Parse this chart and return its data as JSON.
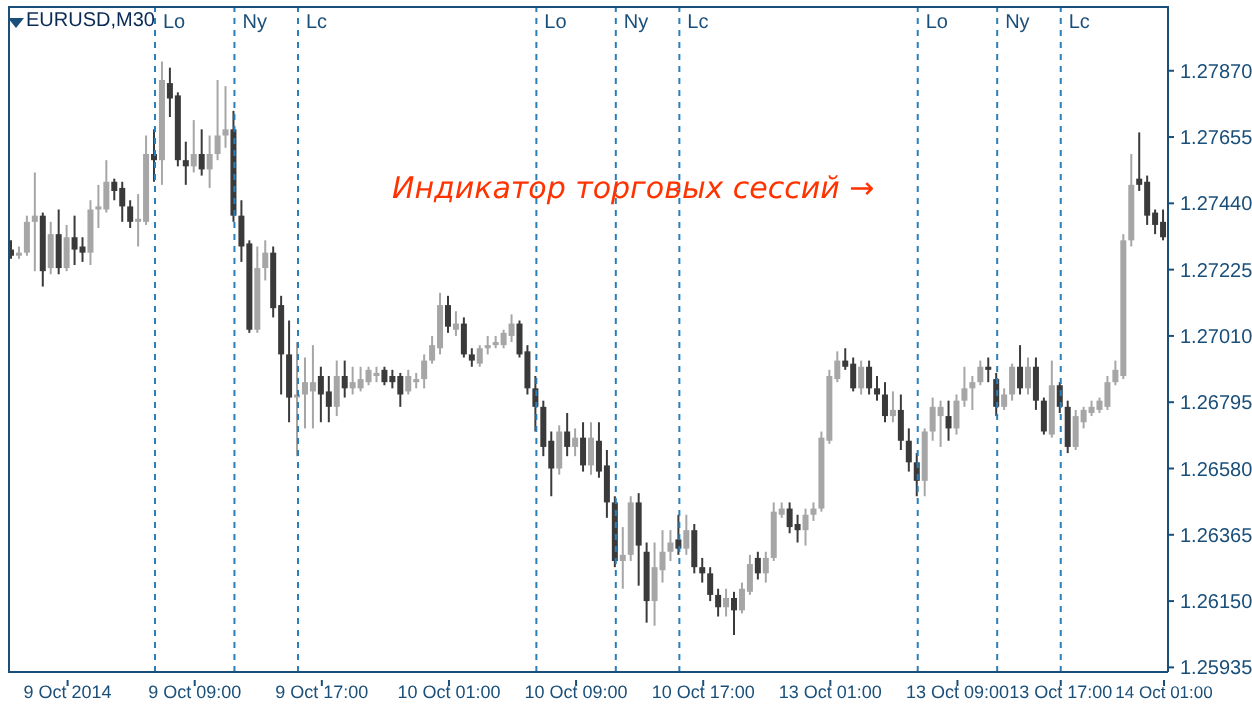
{
  "chart_data": {
    "type": "candlestick",
    "title": "EURUSD,M30",
    "annotations": [
      "Индикатор торговых сессий →",
      "Lo",
      "Ny",
      "Lc",
      "Lo",
      "Ny",
      "Lc",
      "Lo",
      "Ny",
      "Lc"
    ],
    "categories": [
      null,
      null,
      null,
      null,
      null,
      null,
      null,
      "9 Oct 2014",
      null,
      null,
      null,
      null,
      null,
      null,
      null,
      null,
      null,
      null,
      null,
      null,
      null,
      null,
      null,
      "9 Oct 09:00",
      null,
      null,
      null,
      null,
      null,
      null,
      null,
      null,
      null,
      null,
      null,
      null,
      null,
      null,
      null,
      "9 Oct 17:00",
      null,
      null,
      null,
      null,
      null,
      null,
      null,
      null,
      null,
      null,
      null,
      null,
      null,
      null,
      null,
      "10 Oct 01:00",
      null,
      null,
      null,
      null,
      null,
      null,
      null,
      null,
      null,
      null,
      null,
      null,
      null,
      null,
      null,
      "10 Oct 09:00",
      null,
      null,
      null,
      null,
      null,
      null,
      null,
      null,
      null,
      null,
      null,
      null,
      null,
      null,
      null,
      "10 Oct 17:00",
      null,
      null,
      null,
      null,
      null,
      null,
      null,
      null,
      null,
      null,
      null,
      null,
      null,
      null,
      null,
      "13 Oct 01:00",
      null,
      null,
      null,
      null,
      null,
      null,
      null,
      null,
      null,
      null,
      null,
      null,
      null,
      null,
      null,
      "13 Oct 09:00",
      null,
      null,
      null,
      null,
      null,
      null,
      null,
      null,
      null,
      null,
      null,
      null,
      "13 Oct 17:00",
      null,
      null,
      null,
      null,
      null,
      null,
      null,
      null,
      null,
      null,
      null,
      null,
      "14 Oct 01:00"
    ],
    "ohlc": [
      [
        1.2729,
        1.2732,
        1.2726,
        1.2727
      ],
      [
        1.2727,
        1.273,
        1.2726,
        1.2728
      ],
      [
        1.2728,
        1.274,
        1.2727,
        1.2738
      ],
      [
        1.2738,
        1.2754,
        1.2722,
        1.274
      ],
      [
        1.274,
        1.2741,
        1.2717,
        1.2722
      ],
      [
        1.2723,
        1.2738,
        1.2721,
        1.2734
      ],
      [
        1.2734,
        1.2742,
        1.2721,
        1.2723
      ],
      [
        1.2723,
        1.2737,
        1.2722,
        1.2733
      ],
      [
        1.2733,
        1.274,
        1.2724,
        1.2729
      ],
      [
        1.273,
        1.2733,
        1.2725,
        1.2728
      ],
      [
        1.2728,
        1.2745,
        1.2724,
        1.2742
      ],
      [
        1.2742,
        1.275,
        1.2736,
        1.2743
      ],
      [
        1.2742,
        1.2758,
        1.2741,
        1.2751
      ],
      [
        1.2751,
        1.2752,
        1.2745,
        1.2748
      ],
      [
        1.2749,
        1.2751,
        1.2738,
        1.2743
      ],
      [
        1.2743,
        1.2745,
        1.2736,
        1.2738
      ],
      [
        1.2738,
        1.2747,
        1.273,
        1.2739
      ],
      [
        1.2738,
        1.2766,
        1.2737,
        1.276
      ],
      [
        1.276,
        1.2768,
        1.2751,
        1.2758
      ],
      [
        1.2758,
        1.279,
        1.275,
        1.2784
      ],
      [
        1.2783,
        1.2788,
        1.2772,
        1.2778
      ],
      [
        1.2779,
        1.278,
        1.2756,
        1.2758
      ],
      [
        1.2758,
        1.2764,
        1.275,
        1.2756
      ],
      [
        1.2756,
        1.2771,
        1.2754,
        1.276
      ],
      [
        1.276,
        1.2768,
        1.2753,
        1.2755
      ],
      [
        1.2755,
        1.2766,
        1.2749,
        1.276
      ],
      [
        1.276,
        1.2784,
        1.2758,
        1.2766
      ],
      [
        1.2766,
        1.2782,
        1.2762,
        1.2768
      ],
      [
        1.2768,
        1.2774,
        1.2738,
        1.274
      ],
      [
        1.274,
        1.2745,
        1.2725,
        1.273
      ],
      [
        1.2731,
        1.2732,
        1.2702,
        1.2703
      ],
      [
        1.2703,
        1.273,
        1.2702,
        1.2723
      ],
      [
        1.2723,
        1.2732,
        1.2719,
        1.2728
      ],
      [
        1.2728,
        1.273,
        1.2707,
        1.271
      ],
      [
        1.2711,
        1.2714,
        1.2682,
        1.2695
      ],
      [
        1.2695,
        1.2706,
        1.2673,
        1.2681
      ],
      [
        1.2681,
        1.2699,
        1.2662,
        1.2682
      ],
      [
        1.2682,
        1.2694,
        1.2671,
        1.2686
      ],
      [
        1.2683,
        1.2698,
        1.2671,
        1.2686
      ],
      [
        1.2688,
        1.2691,
        1.2673,
        1.2682
      ],
      [
        1.2683,
        1.2688,
        1.2673,
        1.2678
      ],
      [
        1.2678,
        1.2693,
        1.2675,
        1.2688
      ],
      [
        1.2688,
        1.2693,
        1.2681,
        1.2684
      ],
      [
        1.2684,
        1.2691,
        1.2682,
        1.2686
      ],
      [
        1.2684,
        1.2691,
        1.2683,
        1.2687
      ],
      [
        1.2686,
        1.2691,
        1.2685,
        1.269
      ],
      [
        1.2688,
        1.2691,
        1.2686,
        1.2689
      ],
      [
        1.269,
        1.2691,
        1.2685,
        1.2686
      ],
      [
        1.2688,
        1.269,
        1.2684,
        1.2686
      ],
      [
        1.2688,
        1.2689,
        1.2678,
        1.2682
      ],
      [
        1.2683,
        1.269,
        1.2682,
        1.2688
      ],
      [
        1.2686,
        1.2689,
        1.2684,
        1.2687
      ],
      [
        1.2687,
        1.2695,
        1.2684,
        1.2693
      ],
      [
        1.2693,
        1.2701,
        1.2692,
        1.2698
      ],
      [
        1.2697,
        1.2715,
        1.2695,
        1.2711
      ],
      [
        1.2711,
        1.2714,
        1.2702,
        1.2704
      ],
      [
        1.2703,
        1.2709,
        1.2701,
        1.2705
      ],
      [
        1.2705,
        1.2707,
        1.2694,
        1.2695
      ],
      [
        1.2695,
        1.2697,
        1.2691,
        1.2693
      ],
      [
        1.2692,
        1.2698,
        1.2691,
        1.2697
      ],
      [
        1.2697,
        1.2701,
        1.2695,
        1.2698
      ],
      [
        1.2698,
        1.2701,
        1.2697,
        1.2699
      ],
      [
        1.2698,
        1.2703,
        1.2697,
        1.2702
      ],
      [
        1.2701,
        1.2708,
        1.2699,
        1.2705
      ],
      [
        1.2705,
        1.2706,
        1.2694,
        1.2695
      ],
      [
        1.2696,
        1.2698,
        1.2682,
        1.2684
      ],
      [
        1.2684,
        1.2688,
        1.267,
        1.2678
      ],
      [
        1.2678,
        1.268,
        1.2662,
        1.2665
      ],
      [
        1.2667,
        1.267,
        1.2649,
        1.2658
      ],
      [
        1.2658,
        1.2672,
        1.2656,
        1.267
      ],
      [
        1.267,
        1.2676,
        1.2662,
        1.2665
      ],
      [
        1.2665,
        1.2671,
        1.2662,
        1.2668
      ],
      [
        1.2668,
        1.2673,
        1.2657,
        1.2659
      ],
      [
        1.2659,
        1.2673,
        1.2656,
        1.2668
      ],
      [
        1.2667,
        1.2673,
        1.2655,
        1.2657
      ],
      [
        1.2659,
        1.2664,
        1.2642,
        1.2647
      ],
      [
        1.2647,
        1.2649,
        1.2626,
        1.2628
      ],
      [
        1.2628,
        1.2639,
        1.2619,
        1.263
      ],
      [
        1.263,
        1.2649,
        1.2628,
        1.2647
      ],
      [
        1.2647,
        1.265,
        1.262,
        1.2633
      ],
      [
        1.2631,
        1.2634,
        1.2608,
        1.2615
      ],
      [
        1.2615,
        1.2634,
        1.2607,
        1.2626
      ],
      [
        1.2625,
        1.2638,
        1.2621,
        1.2631
      ],
      [
        1.2631,
        1.2638,
        1.2628,
        1.2634
      ],
      [
        1.2635,
        1.2643,
        1.263,
        1.2632
      ],
      [
        1.2632,
        1.2643,
        1.263,
        1.2638
      ],
      [
        1.2638,
        1.264,
        1.2624,
        1.2626
      ],
      [
        1.2626,
        1.2629,
        1.2621,
        1.2624
      ],
      [
        1.2624,
        1.2626,
        1.2615,
        1.2617
      ],
      [
        1.2617,
        1.2619,
        1.261,
        1.2613
      ],
      [
        1.2613,
        1.2619,
        1.261,
        1.2616
      ],
      [
        1.2616,
        1.2618,
        1.2604,
        1.2612
      ],
      [
        1.2612,
        1.2621,
        1.2611,
        1.2619
      ],
      [
        1.2618,
        1.263,
        1.2617,
        1.2627
      ],
      [
        1.2629,
        1.2631,
        1.2622,
        1.2624
      ],
      [
        1.2624,
        1.2631,
        1.2621,
        1.2629
      ],
      [
        1.2629,
        1.2647,
        1.2628,
        1.2644
      ],
      [
        1.2643,
        1.2647,
        1.2642,
        1.2645
      ],
      [
        1.2645,
        1.2647,
        1.2637,
        1.2639
      ],
      [
        1.264,
        1.2643,
        1.2634,
        1.2638
      ],
      [
        1.2638,
        1.2645,
        1.2633,
        1.2643
      ],
      [
        1.2643,
        1.2647,
        1.2641,
        1.2645
      ],
      [
        1.2645,
        1.267,
        1.2644,
        1.2668
      ],
      [
        1.2667,
        1.269,
        1.2666,
        1.2688
      ],
      [
        1.2687,
        1.2696,
        1.2686,
        1.2693
      ],
      [
        1.2693,
        1.2697,
        1.269,
        1.2691
      ],
      [
        1.2692,
        1.2694,
        1.2683,
        1.2684
      ],
      [
        1.2684,
        1.2693,
        1.2682,
        1.2691
      ],
      [
        1.2691,
        1.2693,
        1.2682,
        1.2684
      ],
      [
        1.2684,
        1.2688,
        1.268,
        1.2682
      ],
      [
        1.2682,
        1.2686,
        1.2673,
        1.2675
      ],
      [
        1.2675,
        1.2683,
        1.2673,
        1.2677
      ],
      [
        1.2677,
        1.2682,
        1.2664,
        1.2667
      ],
      [
        1.2667,
        1.2671,
        1.2657,
        1.266
      ],
      [
        1.266,
        1.2663,
        1.2649,
        1.2654
      ],
      [
        1.2654,
        1.2671,
        1.2649,
        1.267
      ],
      [
        1.267,
        1.2681,
        1.2667,
        1.2678
      ],
      [
        1.2675,
        1.268,
        1.2665,
        1.2678
      ],
      [
        1.2675,
        1.268,
        1.2667,
        1.2671
      ],
      [
        1.2671,
        1.2682,
        1.2669,
        1.268
      ],
      [
        1.268,
        1.2691,
        1.2678,
        1.2684
      ],
      [
        1.2684,
        1.2688,
        1.2677,
        1.2686
      ],
      [
        1.2686,
        1.2693,
        1.2685,
        1.2691
      ],
      [
        1.2691,
        1.2694,
        1.2686,
        1.269
      ],
      [
        1.2687,
        1.2689,
        1.2675,
        1.2678
      ],
      [
        1.2678,
        1.2684,
        1.2677,
        1.2682
      ],
      [
        1.2682,
        1.2692,
        1.268,
        1.2691
      ],
      [
        1.2691,
        1.2698,
        1.2682,
        1.2684
      ],
      [
        1.2684,
        1.2694,
        1.2682,
        1.2691
      ],
      [
        1.2691,
        1.2694,
        1.2677,
        1.268
      ],
      [
        1.268,
        1.2681,
        1.2669,
        1.267
      ],
      [
        1.2669,
        1.2693,
        1.2668,
        1.2685
      ],
      [
        1.2685,
        1.2686,
        1.2676,
        1.2678
      ],
      [
        1.2678,
        1.268,
        1.2663,
        1.2665
      ],
      [
        1.2665,
        1.2677,
        1.2664,
        1.2675
      ],
      [
        1.2673,
        1.2678,
        1.2671,
        1.2677
      ],
      [
        1.2676,
        1.268,
        1.2675,
        1.2678
      ],
      [
        1.2677,
        1.2681,
        1.2676,
        1.268
      ],
      [
        1.2678,
        1.2688,
        1.2677,
        1.2686
      ],
      [
        1.2686,
        1.2693,
        1.2685,
        1.269
      ],
      [
        1.2688,
        1.2734,
        1.2687,
        1.2732
      ],
      [
        1.2732,
        1.276,
        1.273,
        1.275
      ],
      [
        1.2752,
        1.2767,
        1.2748,
        1.275
      ],
      [
        1.2751,
        1.2753,
        1.2737,
        1.274
      ],
      [
        1.2741,
        1.2742,
        1.2734,
        1.2737
      ],
      [
        1.2738,
        1.2742,
        1.2732,
        1.2733
      ]
    ],
    "colors": [
      "#3a3a3a",
      "#a6a6a6",
      "#a6a6a6",
      "#a6a6a6",
      "#3a3a3a",
      "#a6a6a6",
      "#3a3a3a",
      "#a6a6a6",
      "#3a3a3a",
      "#3a3a3a",
      "#a6a6a6",
      "#a6a6a6",
      "#a6a6a6",
      "#3a3a3a",
      "#3a3a3a",
      "#3a3a3a",
      "#a6a6a6",
      "#a6a6a6",
      "#3a3a3a",
      "#a6a6a6",
      "#3a3a3a",
      "#3a3a3a",
      "#3a3a3a",
      "#a6a6a6",
      "#3a3a3a",
      "#a6a6a6",
      "#a6a6a6",
      "#a6a6a6",
      "#3a3a3a",
      "#3a3a3a",
      "#3a3a3a",
      "#a6a6a6",
      "#a6a6a6",
      "#3a3a3a",
      "#3a3a3a",
      "#3a3a3a",
      "#a6a6a6",
      "#a6a6a6",
      "#a6a6a6",
      "#3a3a3a",
      "#3a3a3a",
      "#a6a6a6",
      "#3a3a3a",
      "#a6a6a6",
      "#a6a6a6",
      "#a6a6a6",
      "#a6a6a6",
      "#3a3a3a",
      "#3a3a3a",
      "#3a3a3a",
      "#a6a6a6",
      "#a6a6a6",
      "#a6a6a6",
      "#a6a6a6",
      "#a6a6a6",
      "#3a3a3a",
      "#a6a6a6",
      "#3a3a3a",
      "#3a3a3a",
      "#a6a6a6",
      "#a6a6a6",
      "#a6a6a6",
      "#a6a6a6",
      "#a6a6a6",
      "#3a3a3a",
      "#3a3a3a",
      "#3a3a3a",
      "#3a3a3a",
      "#3a3a3a",
      "#a6a6a6",
      "#3a3a3a",
      "#a6a6a6",
      "#3a3a3a",
      "#a6a6a6",
      "#3a3a3a",
      "#3a3a3a",
      "#3a3a3a",
      "#a6a6a6",
      "#a6a6a6",
      "#3a3a3a",
      "#3a3a3a",
      "#a6a6a6",
      "#a6a6a6",
      "#a6a6a6",
      "#3a3a3a",
      "#a6a6a6",
      "#3a3a3a",
      "#3a3a3a",
      "#3a3a3a",
      "#3a3a3a",
      "#a6a6a6",
      "#3a3a3a",
      "#a6a6a6",
      "#a6a6a6",
      "#3a3a3a",
      "#a6a6a6",
      "#a6a6a6",
      "#a6a6a6",
      "#3a3a3a",
      "#3a3a3a",
      "#a6a6a6",
      "#a6a6a6",
      "#a6a6a6",
      "#a6a6a6",
      "#a6a6a6",
      "#3a3a3a",
      "#3a3a3a",
      "#a6a6a6",
      "#3a3a3a",
      "#3a3a3a",
      "#3a3a3a",
      "#a6a6a6",
      "#3a3a3a",
      "#3a3a3a",
      "#3a3a3a",
      "#a6a6a6",
      "#a6a6a6",
      "#a6a6a6",
      "#3a3a3a",
      "#a6a6a6",
      "#a6a6a6",
      "#a6a6a6",
      "#a6a6a6",
      "#3a3a3a",
      "#3a3a3a",
      "#a6a6a6",
      "#a6a6a6",
      "#3a3a3a",
      "#a6a6a6",
      "#3a3a3a",
      "#3a3a3a",
      "#a6a6a6",
      "#3a3a3a",
      "#3a3a3a",
      "#a6a6a6",
      "#a6a6a6",
      "#a6a6a6",
      "#a6a6a6",
      "#a6a6a6",
      "#a6a6a6",
      "#a6a6a6",
      "#a6a6a6",
      "#3a3a3a",
      "#3a3a3a",
      "#3a3a3a",
      "#3a3a3a"
    ],
    "ylim": [
      1.2592,
      1.2808
    ],
    "yticks": [
      {
        "value": 1.25935,
        "label": "1.25935"
      },
      {
        "value": 1.2615,
        "label": "1.26150"
      },
      {
        "value": 1.26365,
        "label": "1.26365"
      },
      {
        "value": 1.2658,
        "label": "1.26580"
      },
      {
        "value": 1.26795,
        "label": "1.26795"
      },
      {
        "value": 1.2701,
        "label": "1.27010"
      },
      {
        "value": 1.27225,
        "label": "1.27225"
      },
      {
        "value": 1.2744,
        "label": "1.27440"
      },
      {
        "value": 1.27655,
        "label": "1.27655"
      },
      {
        "value": 1.2787,
        "label": "1.27870"
      }
    ]
  }
}
